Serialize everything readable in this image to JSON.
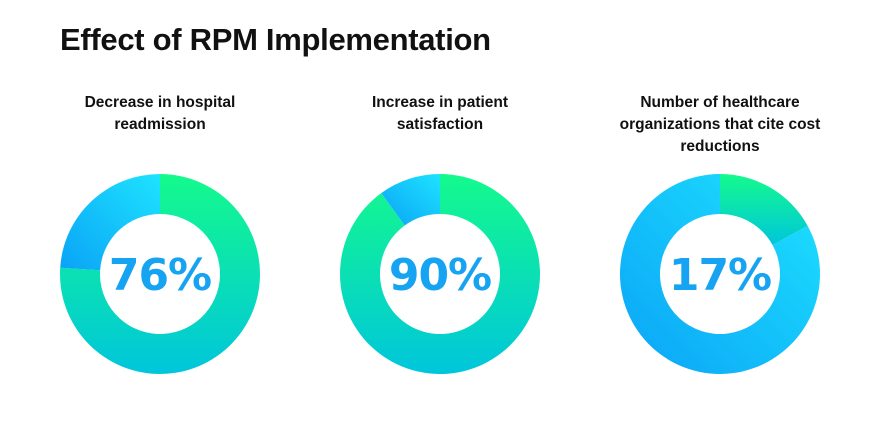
{
  "title": "Effect of RPM Implementation",
  "colors": {
    "green_top": "#14fa8c",
    "green_bottom": "#00c6db",
    "blue_dark": "#0aa3f6",
    "blue_light": "#1ee3ff",
    "percent_text": "#16a3f2"
  },
  "chart_data": [
    {
      "type": "pie",
      "title": "Decrease in hospital readmission",
      "value": 76,
      "label": "76%",
      "highlight": "green"
    },
    {
      "type": "pie",
      "title": "Increase in patient satisfaction",
      "value": 90,
      "label": "90%",
      "highlight": "green"
    },
    {
      "type": "pie",
      "title": "Number of healthcare organizations that cite cost reductions",
      "value": 17,
      "label": "17%",
      "highlight": "green"
    }
  ]
}
